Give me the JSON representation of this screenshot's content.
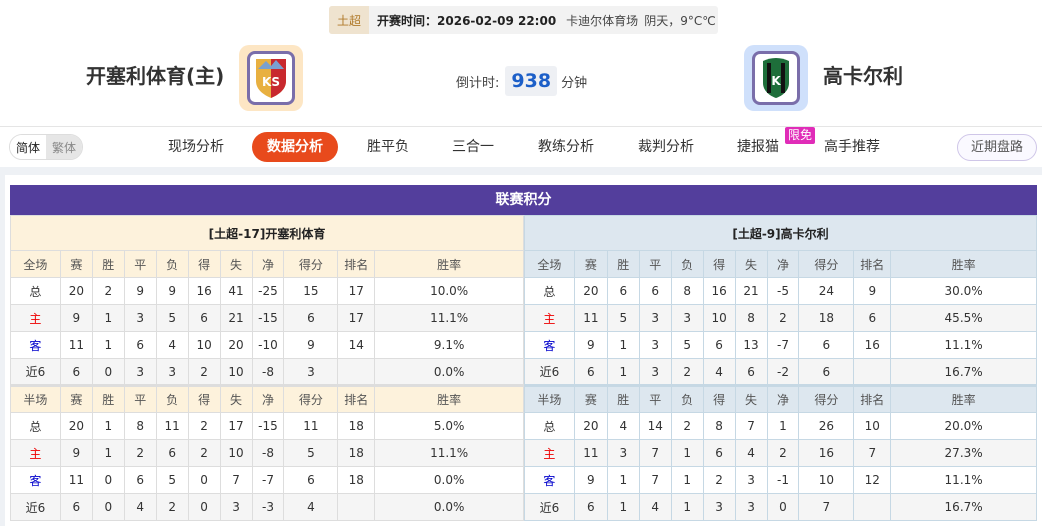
{
  "match": {
    "league": "土超",
    "time_label": "开赛时间：",
    "time": "2026-02-09 22:00",
    "venue": "卡迪尔体育场",
    "weather": "阴天，9°C℃"
  },
  "home": {
    "name": "开塞利体育(主)",
    "logo_text": "KS",
    "color": "#e8b040"
  },
  "away": {
    "name": "高卡尔利",
    "logo_text": "K",
    "color": "#1e6e3a"
  },
  "countdown": {
    "label": "倒计时:",
    "value": "938",
    "unit": "分钟"
  },
  "lang": {
    "simplified": "简体",
    "traditional": "繁体"
  },
  "nav": {
    "items": [
      "现场分析",
      "数据分析",
      "胜平负",
      "三合一",
      "教练分析",
      "裁判分析",
      "捷报猫",
      "高手推荐"
    ],
    "active": 1,
    "badge": "限免",
    "recent": "近期盘路"
  },
  "standings": {
    "title": "联赛积分",
    "home": {
      "team_label": "[土超-17]开塞利体育",
      "full_header": [
        "全场",
        "赛",
        "胜",
        "平",
        "负",
        "得",
        "失",
        "净",
        "得分",
        "排名",
        "胜率"
      ],
      "full_rows": [
        [
          "总",
          "20",
          "2",
          "9",
          "9",
          "16",
          "41",
          "-25",
          "15",
          "17",
          "10.0%"
        ],
        [
          "主",
          "9",
          "1",
          "3",
          "5",
          "6",
          "21",
          "-15",
          "6",
          "17",
          "11.1%"
        ],
        [
          "客",
          "11",
          "1",
          "6",
          "4",
          "10",
          "20",
          "-10",
          "9",
          "14",
          "9.1%"
        ],
        [
          "近6",
          "6",
          "0",
          "3",
          "3",
          "2",
          "10",
          "-8",
          "3",
          "",
          "0.0%"
        ]
      ],
      "half_header": [
        "半场",
        "赛",
        "胜",
        "平",
        "负",
        "得",
        "失",
        "净",
        "得分",
        "排名",
        "胜率"
      ],
      "half_rows": [
        [
          "总",
          "20",
          "1",
          "8",
          "11",
          "2",
          "17",
          "-15",
          "11",
          "18",
          "5.0%"
        ],
        [
          "主",
          "9",
          "1",
          "2",
          "6",
          "2",
          "10",
          "-8",
          "5",
          "18",
          "11.1%"
        ],
        [
          "客",
          "11",
          "0",
          "6",
          "5",
          "0",
          "7",
          "-7",
          "6",
          "18",
          "0.0%"
        ],
        [
          "近6",
          "6",
          "0",
          "4",
          "2",
          "0",
          "3",
          "-3",
          "4",
          "",
          "0.0%"
        ]
      ]
    },
    "away": {
      "team_label": "[土超-9]高卡尔利",
      "full_header": [
        "全场",
        "赛",
        "胜",
        "平",
        "负",
        "得",
        "失",
        "净",
        "得分",
        "排名",
        "胜率"
      ],
      "full_rows": [
        [
          "总",
          "20",
          "6",
          "6",
          "8",
          "16",
          "21",
          "-5",
          "24",
          "9",
          "30.0%"
        ],
        [
          "主",
          "11",
          "5",
          "3",
          "3",
          "10",
          "8",
          "2",
          "18",
          "6",
          "45.5%"
        ],
        [
          "客",
          "9",
          "1",
          "3",
          "5",
          "6",
          "13",
          "-7",
          "6",
          "16",
          "11.1%"
        ],
        [
          "近6",
          "6",
          "1",
          "3",
          "2",
          "4",
          "6",
          "-2",
          "6",
          "",
          "16.7%"
        ]
      ],
      "half_header": [
        "半场",
        "赛",
        "胜",
        "平",
        "负",
        "得",
        "失",
        "净",
        "得分",
        "排名",
        "胜率"
      ],
      "half_rows": [
        [
          "总",
          "20",
          "4",
          "14",
          "2",
          "8",
          "7",
          "1",
          "26",
          "10",
          "20.0%"
        ],
        [
          "主",
          "11",
          "3",
          "7",
          "1",
          "6",
          "4",
          "2",
          "16",
          "7",
          "27.3%"
        ],
        [
          "客",
          "9",
          "1",
          "7",
          "1",
          "2",
          "3",
          "-1",
          "10",
          "12",
          "11.1%"
        ],
        [
          "近6",
          "6",
          "1",
          "4",
          "1",
          "3",
          "3",
          "0",
          "7",
          "",
          "16.7%"
        ]
      ]
    }
  }
}
